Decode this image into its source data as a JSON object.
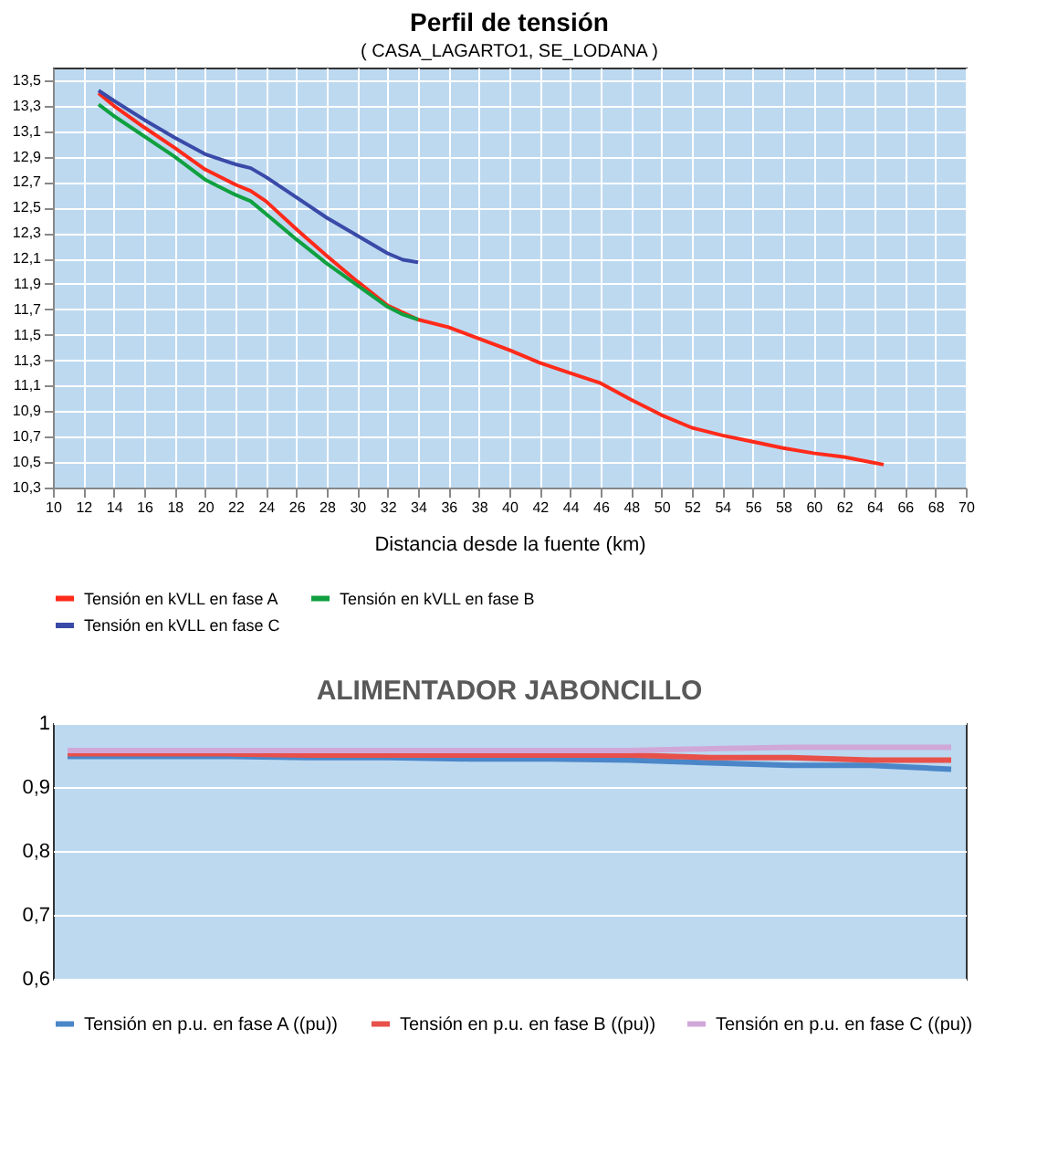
{
  "chart_data": [
    {
      "type": "line",
      "title": "Perfil de tensión",
      "subtitle": "( CASA_LAGARTO1, SE_LODANA )",
      "xlabel": "Distancia desde la fuente (km)",
      "xlim": [
        10,
        70
      ],
      "xticks": [
        10,
        12,
        14,
        16,
        18,
        20,
        22,
        24,
        26,
        28,
        30,
        32,
        34,
        36,
        38,
        40,
        42,
        44,
        46,
        48,
        50,
        52,
        54,
        56,
        58,
        60,
        62,
        64,
        66,
        68,
        70
      ],
      "ylim": [
        10.3,
        13.6
      ],
      "yticks": [
        {
          "value": 10.3,
          "label": "10,3"
        },
        {
          "value": 10.5,
          "label": "10,5"
        },
        {
          "value": 10.7,
          "label": "10,7"
        },
        {
          "value": 10.9,
          "label": "10,9"
        },
        {
          "value": 11.1,
          "label": "11,1"
        },
        {
          "value": 11.3,
          "label": "11,3"
        },
        {
          "value": 11.5,
          "label": "11,5"
        },
        {
          "value": 11.7,
          "label": "11,7"
        },
        {
          "value": 11.9,
          "label": "11,9"
        },
        {
          "value": 12.1,
          "label": "12,1"
        },
        {
          "value": 12.3,
          "label": "12,3"
        },
        {
          "value": 12.5,
          "label": "12,5"
        },
        {
          "value": 12.7,
          "label": "12,7"
        },
        {
          "value": 12.9,
          "label": "12,9"
        },
        {
          "value": 13.1,
          "label": "13,1"
        },
        {
          "value": 13.3,
          "label": "13,3"
        },
        {
          "value": 13.5,
          "label": "13,5"
        }
      ],
      "grid": true,
      "legend": "bottom",
      "marker": "none",
      "line_style": "solid",
      "series": [
        {
          "name": "Tensión en kVLL en fase A",
          "color": "#ff2a1a",
          "x": [
            13,
            14,
            16,
            18,
            20,
            22,
            23,
            24,
            26,
            28,
            30,
            32,
            34,
            36,
            38,
            40,
            42,
            44,
            46,
            48,
            50,
            52,
            54,
            56,
            58,
            60,
            62,
            64.6
          ],
          "values": [
            13.4,
            13.3,
            13.13,
            12.97,
            12.8,
            12.68,
            12.63,
            12.55,
            12.33,
            12.12,
            11.92,
            11.73,
            11.62,
            11.56,
            11.47,
            11.38,
            11.28,
            11.2,
            11.12,
            10.99,
            10.87,
            10.77,
            10.71,
            10.66,
            10.61,
            10.57,
            10.54,
            10.48
          ]
        },
        {
          "name": "Tensión en kVLL en fase B",
          "color": "#10a040",
          "x": [
            13,
            14,
            16,
            18,
            20,
            22,
            23,
            24,
            26,
            28,
            30,
            32,
            33,
            34
          ],
          "values": [
            13.31,
            13.22,
            13.06,
            12.9,
            12.72,
            12.6,
            12.55,
            12.45,
            12.25,
            12.06,
            11.89,
            11.72,
            11.66,
            11.62
          ]
        },
        {
          "name": "Tensión en kVLL en fase C",
          "color": "#3a4aa8",
          "x": [
            13,
            14,
            16,
            18,
            20,
            22,
            23,
            24,
            26,
            28,
            30,
            32,
            33,
            34
          ],
          "values": [
            13.42,
            13.34,
            13.19,
            13.05,
            12.92,
            12.84,
            12.81,
            12.74,
            12.58,
            12.42,
            12.28,
            12.14,
            12.09,
            12.07
          ]
        }
      ]
    },
    {
      "type": "line",
      "title": "ALIMENTADOR JABONCILLO",
      "categories": [
        null,
        null,
        null,
        null,
        null,
        null,
        null,
        null,
        null,
        null,
        null,
        null
      ],
      "ylim": [
        0.6,
        1.0
      ],
      "yticks": [
        {
          "value": 0.6,
          "label": "0,6"
        },
        {
          "value": 0.7,
          "label": "0,7"
        },
        {
          "value": 0.8,
          "label": "0,8"
        },
        {
          "value": 0.9,
          "label": "0,9"
        },
        1
      ],
      "grid": "y",
      "legend": "bottom",
      "marker": "none",
      "line_style": "solid",
      "series": [
        {
          "name": "Tensión en p.u. en fase A ((pu))",
          "color": "#4a86c8",
          "values": [
            0.948,
            0.948,
            0.948,
            0.946,
            0.946,
            0.944,
            0.944,
            0.942,
            0.938,
            0.934,
            0.934,
            0.928
          ]
        },
        {
          "name": "Tensión en p.u. en fase B ((pu))",
          "color": "#e8504a",
          "values": [
            0.952,
            0.952,
            0.952,
            0.95,
            0.95,
            0.95,
            0.95,
            0.95,
            0.946,
            0.946,
            0.942,
            0.942
          ]
        },
        {
          "name": "Tensión en p.u. en fase C ((pu))",
          "color": "#d0a8d8",
          "values": [
            0.957,
            0.957,
            0.957,
            0.957,
            0.957,
            0.957,
            0.957,
            0.957,
            0.96,
            0.962,
            0.962,
            0.962
          ]
        }
      ]
    }
  ]
}
